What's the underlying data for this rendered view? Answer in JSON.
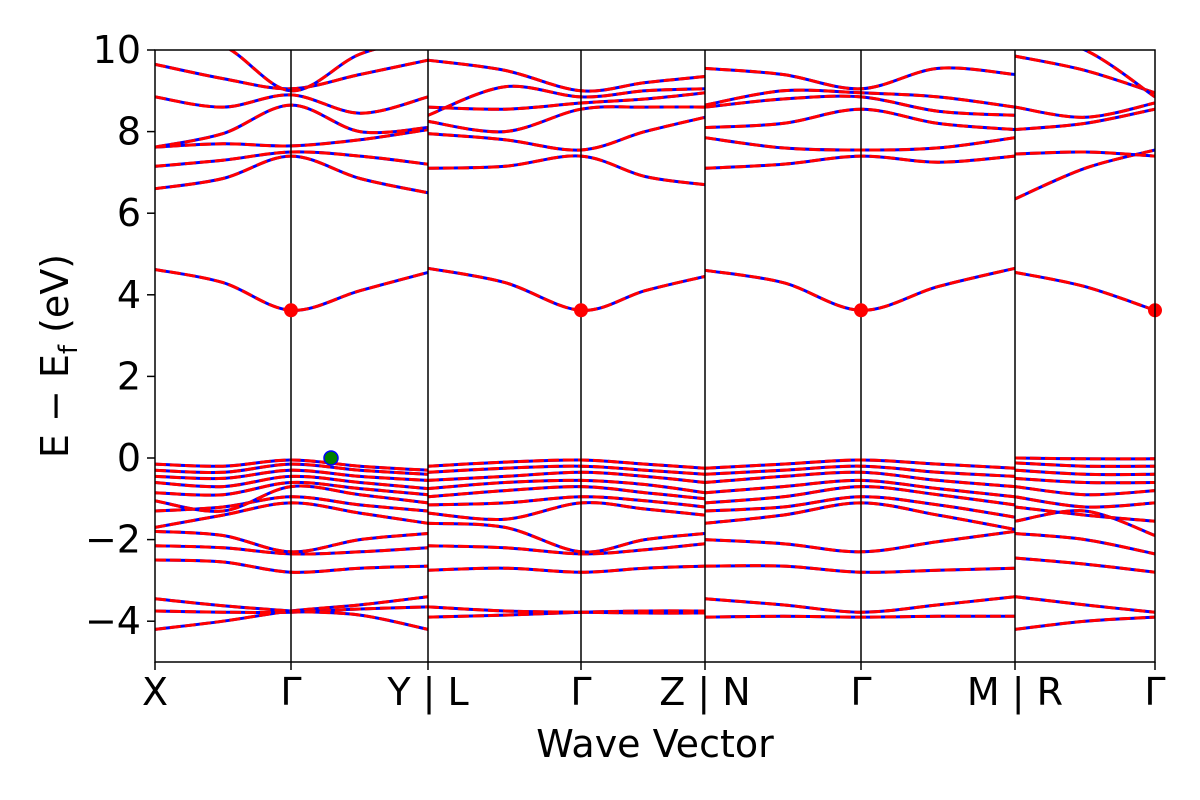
{
  "chart_data": {
    "type": "line",
    "title": "",
    "xlabel": "Wave Vector",
    "ylabel": "E − E",
    "ylabel_sub": "f",
    "ylabel_unit": " (eV)",
    "ylim": [
      -5,
      10
    ],
    "xlim": [
      0,
      1
    ],
    "yticks": [
      -4,
      -2,
      0,
      2,
      4,
      6,
      8,
      10
    ],
    "ytick_labels": [
      "−4",
      "−2",
      "0",
      "2",
      "4",
      "6",
      "8",
      "10"
    ],
    "xticks": [
      {
        "x": 0.0,
        "label": "X"
      },
      {
        "x": 0.136,
        "label": "Γ"
      },
      {
        "x": 0.273,
        "label": "Y | L"
      },
      {
        "x": 0.426,
        "label": "Γ"
      },
      {
        "x": 0.55,
        "label": "Z | N"
      },
      {
        "x": 0.706,
        "label": "Γ"
      },
      {
        "x": 0.86,
        "label": "M | R"
      },
      {
        "x": 1.0,
        "label": "Γ"
      }
    ],
    "segment_boundaries": [
      0.0,
      0.273,
      0.55,
      0.86,
      1.0
    ],
    "grid": false,
    "legend": "none",
    "series_colors": {
      "band": "#ff0000",
      "overlay_dash": "#0000ff"
    },
    "cbm_points": [
      {
        "x": 0.136,
        "y": 3.62
      },
      {
        "x": 0.426,
        "y": 3.62
      },
      {
        "x": 0.706,
        "y": 3.62
      },
      {
        "x": 1.0,
        "y": 3.62
      }
    ],
    "vbm_point": {
      "x": 0.176,
      "y": 0.0
    },
    "cbm_color": "#ff0000",
    "vbm_color": "#008000",
    "vbm_edge_color": "#0000ff",
    "segments": [
      {
        "x": [
          0.0,
          0.068,
          0.136,
          0.205,
          0.273
        ],
        "bands": [
          [
            -4.2,
            -4.0,
            -3.75,
            -3.6,
            -3.4
          ],
          [
            -3.75,
            -3.78,
            -3.78,
            -3.7,
            -3.65
          ],
          [
            -3.45,
            -3.62,
            -3.75,
            -3.85,
            -4.2
          ],
          [
            -2.5,
            -2.55,
            -2.8,
            -2.7,
            -2.65
          ],
          [
            -2.15,
            -2.2,
            -2.35,
            -2.3,
            -2.2
          ],
          [
            -1.8,
            -1.9,
            -2.3,
            -2.0,
            -1.85
          ],
          [
            -1.7,
            -1.4,
            -1.1,
            -1.35,
            -1.6
          ],
          [
            -1.3,
            -1.2,
            -0.95,
            -1.15,
            -1.3
          ],
          [
            -1.05,
            -1.3,
            -0.7,
            -0.9,
            -1.1
          ],
          [
            -0.85,
            -0.9,
            -0.6,
            -0.75,
            -0.9
          ],
          [
            -0.6,
            -0.7,
            -0.45,
            -0.6,
            -0.75
          ],
          [
            -0.45,
            -0.5,
            -0.3,
            -0.45,
            -0.55
          ],
          [
            -0.3,
            -0.35,
            -0.15,
            -0.3,
            -0.4
          ],
          [
            -0.15,
            -0.2,
            -0.05,
            -0.2,
            -0.3
          ],
          [
            4.62,
            4.3,
            3.62,
            4.1,
            4.55
          ],
          [
            6.6,
            6.85,
            7.4,
            6.85,
            6.5
          ],
          [
            7.15,
            7.3,
            7.5,
            7.4,
            7.2
          ],
          [
            7.62,
            7.7,
            7.65,
            7.8,
            8.05
          ],
          [
            7.62,
            7.95,
            8.65,
            8.0,
            8.1
          ],
          [
            8.85,
            8.6,
            8.9,
            8.45,
            8.85
          ],
          [
            9.65,
            9.3,
            9.05,
            9.4,
            9.75
          ],
          [
            10.3,
            10.1,
            9.0,
            9.9,
            10.3
          ]
        ]
      },
      {
        "x": [
          0.273,
          0.35,
          0.426,
          0.49,
          0.55
        ],
        "bands": [
          [
            -3.9,
            -3.85,
            -3.78,
            -3.75,
            -3.75
          ],
          [
            -3.65,
            -3.75,
            -3.78,
            -3.8,
            -3.8
          ],
          [
            -2.75,
            -2.7,
            -2.8,
            -2.7,
            -2.65
          ],
          [
            -2.15,
            -2.2,
            -2.35,
            -2.25,
            -2.1
          ],
          [
            -1.6,
            -1.7,
            -2.3,
            -2.0,
            -1.85
          ],
          [
            -1.35,
            -1.5,
            -1.1,
            -1.25,
            -1.4
          ],
          [
            -1.15,
            -1.1,
            -0.95,
            -1.05,
            -1.2
          ],
          [
            -0.95,
            -0.8,
            -0.7,
            -0.85,
            -1.0
          ],
          [
            -0.75,
            -0.6,
            -0.55,
            -0.65,
            -0.85
          ],
          [
            -0.55,
            -0.45,
            -0.35,
            -0.45,
            -0.6
          ],
          [
            -0.35,
            -0.25,
            -0.2,
            -0.3,
            -0.4
          ],
          [
            -0.2,
            -0.1,
            -0.05,
            -0.15,
            -0.25
          ],
          [
            4.65,
            4.3,
            3.62,
            4.1,
            4.45
          ],
          [
            7.1,
            7.15,
            7.4,
            6.9,
            6.7
          ],
          [
            7.95,
            7.8,
            7.55,
            8.0,
            8.35
          ],
          [
            8.25,
            8.0,
            8.55,
            8.6,
            8.6
          ],
          [
            8.6,
            8.55,
            8.7,
            8.8,
            8.95
          ],
          [
            8.4,
            9.1,
            8.85,
            9.0,
            9.05
          ],
          [
            9.75,
            9.5,
            9.0,
            9.2,
            9.35
          ]
        ]
      },
      {
        "x": [
          0.55,
          0.628,
          0.706,
          0.783,
          0.86
        ],
        "bands": [
          [
            -3.9,
            -3.88,
            -3.9,
            -3.88,
            -3.88
          ],
          [
            -3.45,
            -3.6,
            -3.78,
            -3.6,
            -3.4
          ],
          [
            -2.65,
            -2.65,
            -2.8,
            -2.75,
            -2.7
          ],
          [
            -2.0,
            -2.1,
            -2.3,
            -2.05,
            -1.8
          ],
          [
            -1.6,
            -1.4,
            -1.1,
            -1.4,
            -1.75
          ],
          [
            -1.3,
            -1.2,
            -0.95,
            -1.15,
            -1.45
          ],
          [
            -1.1,
            -0.95,
            -0.7,
            -0.9,
            -1.15
          ],
          [
            -0.85,
            -0.7,
            -0.55,
            -0.75,
            -0.95
          ],
          [
            -0.6,
            -0.45,
            -0.35,
            -0.55,
            -0.7
          ],
          [
            -0.4,
            -0.3,
            -0.2,
            -0.35,
            -0.45
          ],
          [
            -0.25,
            -0.15,
            -0.05,
            -0.15,
            -0.25
          ],
          [
            4.6,
            4.3,
            3.62,
            4.2,
            4.65
          ],
          [
            7.1,
            7.2,
            7.4,
            7.25,
            7.4
          ],
          [
            7.85,
            7.6,
            7.55,
            7.6,
            7.85
          ],
          [
            8.1,
            8.2,
            8.55,
            8.2,
            8.05
          ],
          [
            8.6,
            8.8,
            8.85,
            8.5,
            8.4
          ],
          [
            8.65,
            9.0,
            8.95,
            8.85,
            8.6
          ],
          [
            9.55,
            9.4,
            9.05,
            9.55,
            9.4
          ]
        ]
      },
      {
        "x": [
          0.86,
          0.93,
          1.0
        ],
        "bands": [
          [
            -4.2,
            -4.0,
            -3.9
          ],
          [
            -3.4,
            -3.6,
            -3.78
          ],
          [
            -2.45,
            -2.6,
            -2.8
          ],
          [
            -1.85,
            -2.0,
            -2.35
          ],
          [
            -1.55,
            -1.3,
            -1.9
          ],
          [
            -1.2,
            -1.4,
            -1.55
          ],
          [
            -0.95,
            -1.2,
            -1.1
          ],
          [
            -0.7,
            -0.9,
            -0.8
          ],
          [
            -0.5,
            -0.6,
            -0.6
          ],
          [
            -0.3,
            -0.4,
            -0.4
          ],
          [
            -0.12,
            -0.2,
            -0.2
          ],
          [
            0.0,
            -0.02,
            -0.02
          ],
          [
            4.55,
            4.2,
            3.62
          ],
          [
            6.35,
            7.1,
            7.55
          ],
          [
            7.45,
            7.5,
            7.4
          ],
          [
            8.05,
            8.2,
            8.55
          ],
          [
            8.6,
            8.35,
            8.7
          ],
          [
            9.85,
            9.5,
            8.95
          ],
          [
            10.4,
            10.0,
            8.85
          ]
        ]
      }
    ]
  }
}
